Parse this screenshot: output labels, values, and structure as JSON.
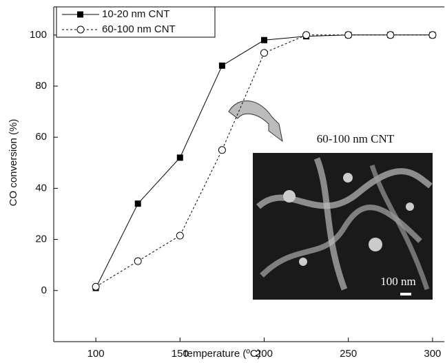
{
  "chart_data": {
    "type": "line",
    "x_label": "temperature (ºC)",
    "y_label": "CO conversion (%)",
    "x": [
      100,
      125,
      150,
      175,
      200,
      225,
      250,
      275,
      300
    ],
    "series": [
      {
        "name": "10-20 nm CNT",
        "color": "#000000",
        "marker": "square",
        "dash": false,
        "values": [
          1,
          34,
          52,
          88,
          98,
          99.5,
          100,
          100,
          100
        ]
      },
      {
        "name": "60-100 nm CNT",
        "color": "#000000",
        "marker": "circle",
        "dash": true,
        "values": [
          1.5,
          11.5,
          21.5,
          55,
          93,
          100,
          100,
          100,
          100
        ]
      }
    ],
    "xlim": [
      75,
      307
    ],
    "ylim": [
      -20,
      111
    ],
    "xticks": [
      100,
      150,
      200,
      250,
      300
    ],
    "yticks": [
      0,
      20,
      40,
      60,
      80,
      100
    ],
    "legend": "top-left",
    "annotations": {
      "inset_title": "60-100 nm CNT",
      "scale_bar": "100 nm"
    }
  }
}
